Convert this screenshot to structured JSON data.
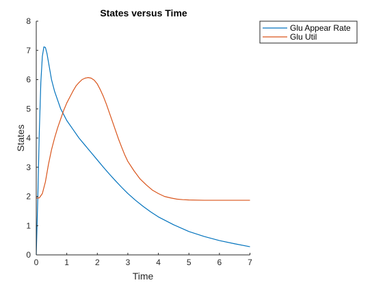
{
  "chart_data": {
    "type": "line",
    "title": "States versus Time",
    "xlabel": "Time",
    "ylabel": "States",
    "xlim": [
      0,
      7
    ],
    "ylim": [
      0,
      8
    ],
    "xticks": [
      "0",
      "1",
      "2",
      "3",
      "4",
      "5",
      "6",
      "7"
    ],
    "yticks": [
      "0",
      "1",
      "2",
      "3",
      "4",
      "5",
      "6",
      "7",
      "8"
    ],
    "grid": false,
    "legend_position": "outside-top-right",
    "series": [
      {
        "name": "Glu Appear Rate",
        "color": "#0072BD",
        "x": [
          0,
          0.05,
          0.1,
          0.15,
          0.2,
          0.25,
          0.3,
          0.35,
          0.4,
          0.45,
          0.5,
          0.6,
          0.7,
          0.8,
          0.9,
          1.0,
          1.2,
          1.4,
          1.6,
          1.8,
          2.0,
          2.2,
          2.4,
          2.6,
          2.8,
          3.0,
          3.25,
          3.5,
          3.75,
          4.0,
          4.5,
          5.0,
          5.5,
          6.0,
          6.5,
          7.0
        ],
        "y": [
          0,
          1.9,
          4.2,
          5.9,
          6.8,
          7.12,
          7.1,
          6.9,
          6.6,
          6.3,
          6.0,
          5.6,
          5.3,
          5.0,
          4.8,
          4.6,
          4.3,
          4.0,
          3.75,
          3.5,
          3.25,
          3.0,
          2.76,
          2.53,
          2.31,
          2.1,
          1.87,
          1.66,
          1.47,
          1.3,
          1.03,
          0.8,
          0.63,
          0.49,
          0.38,
          0.28
        ]
      },
      {
        "name": "Glu Util",
        "color": "#D95319",
        "x": [
          0,
          0.1,
          0.2,
          0.3,
          0.4,
          0.5,
          0.6,
          0.7,
          0.8,
          0.9,
          1.0,
          1.1,
          1.2,
          1.3,
          1.4,
          1.5,
          1.6,
          1.7,
          1.8,
          1.9,
          2.0,
          2.1,
          2.2,
          2.3,
          2.4,
          2.5,
          2.6,
          2.7,
          2.8,
          2.9,
          3.0,
          3.2,
          3.4,
          3.6,
          3.8,
          4.0,
          4.2,
          4.4,
          4.6,
          4.8,
          5.0,
          5.5,
          6.0,
          6.5,
          7.0
        ],
        "y": [
          1.95,
          1.95,
          2.1,
          2.5,
          3.1,
          3.6,
          4.0,
          4.35,
          4.65,
          4.95,
          5.2,
          5.4,
          5.6,
          5.78,
          5.9,
          6.0,
          6.05,
          6.07,
          6.05,
          5.98,
          5.85,
          5.65,
          5.42,
          5.15,
          4.85,
          4.55,
          4.25,
          3.95,
          3.68,
          3.42,
          3.2,
          2.88,
          2.6,
          2.4,
          2.22,
          2.1,
          2.0,
          1.95,
          1.91,
          1.89,
          1.88,
          1.87,
          1.87,
          1.87,
          1.87
        ]
      }
    ]
  }
}
